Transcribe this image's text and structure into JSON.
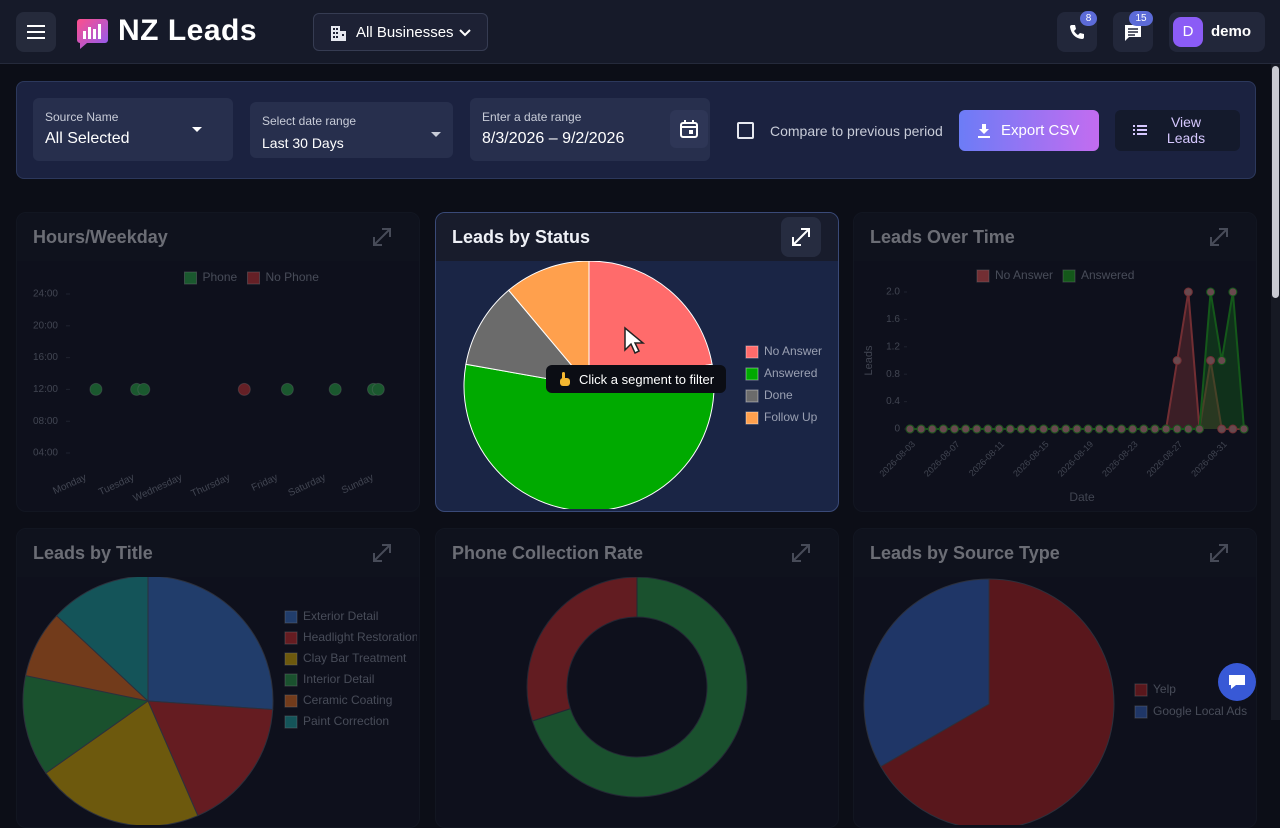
{
  "header": {
    "brand": "NZ Leads",
    "business": "All Businesses",
    "calls_badge": 8,
    "messages_badge": 15,
    "avatar": "D",
    "user": "demo"
  },
  "filters": {
    "source_label": "Source Name",
    "source_value": "All Selected",
    "range_label": "Select date range",
    "range_value": "Last 30 Days",
    "date_label": "Enter a date range",
    "date_value": "8/3/2026 – 9/2/2026",
    "compare": "Compare to previous period",
    "export": "Export CSV",
    "view": "View Leads"
  },
  "cards": [
    {
      "title": "Hours/Weekday",
      "chart_data": {
        "type": "scatter",
        "categories": [
          "Monday",
          "Tuesday",
          "Wednesday",
          "Thursday",
          "Friday",
          "Saturday",
          "Sunday"
        ],
        "xlim": [
          0,
          7
        ],
        "ylim": [
          4,
          24
        ],
        "yticks": [
          {
            "value": 24,
            "label": "24:00"
          },
          {
            "value": 20,
            "label": "20:00"
          },
          {
            "value": 16,
            "label": "16:00"
          },
          {
            "value": 12,
            "label": "12:00"
          },
          {
            "value": 8,
            "label": "08:00"
          },
          {
            "value": 4,
            "label": "04:00"
          }
        ],
        "series": [
          {
            "name": "Phone",
            "color": "#2fbf4f",
            "x": [
              0.5,
              1.35,
              1.5,
              4.5,
              5.5,
              6.3,
              6.4
            ],
            "y": [
              12,
              12,
              12,
              12,
              12,
              12,
              12
            ]
          },
          {
            "name": "No Phone",
            "color": "#e03b3b",
            "x": [
              3.6
            ],
            "y": [
              12
            ]
          }
        ]
      }
    },
    {
      "title": "Leads by Status",
      "tooltip": "Click a segment to filter",
      "chart_data": {
        "type": "pie",
        "labels": [
          "No Answer",
          "Answered",
          "Done",
          "Follow Up"
        ],
        "values": [
          4,
          10,
          2,
          2
        ],
        "colors": [
          "#ff6b6b",
          "#00aa00",
          "#6b6b6b",
          "#ffa04d"
        ]
      }
    },
    {
      "title": "Leads Over Time",
      "chart_data": {
        "type": "line",
        "categories": [
          "2026-08-03",
          null,
          null,
          null,
          "2026-08-07",
          null,
          null,
          null,
          "2026-08-11",
          null,
          null,
          null,
          "2026-08-15",
          null,
          null,
          null,
          "2026-08-19",
          null,
          null,
          null,
          "2026-08-23",
          null,
          null,
          null,
          "2026-08-27",
          null,
          null,
          null,
          "2026-08-31",
          null,
          null
        ],
        "ylim": [
          0,
          2
        ],
        "yticks": [
          0,
          {
            "value": 0.4,
            "label": "0.4"
          },
          {
            "value": 0.8,
            "label": "0.8"
          },
          {
            "value": 1.2,
            "label": "1.2"
          },
          {
            "value": 1.6,
            "label": "1.6"
          },
          {
            "value": 2,
            "label": "2.0"
          }
        ],
        "y_label": "Leads",
        "x_label": "Date",
        "series": [
          {
            "name": "No Answer",
            "color": "#ff5a5a",
            "values": [
              0,
              0,
              0,
              0,
              0,
              0,
              0,
              0,
              0,
              0,
              0,
              0,
              0,
              0,
              0,
              0,
              0,
              0,
              0,
              0,
              0,
              0,
              0,
              0,
              1,
              2,
              0,
              1,
              0,
              0,
              0
            ]
          },
          {
            "name": "Answered",
            "color": "#1fbf1f",
            "values": [
              0,
              0,
              0,
              0,
              0,
              0,
              0,
              0,
              0,
              0,
              0,
              0,
              0,
              0,
              0,
              0,
              0,
              0,
              0,
              0,
              0,
              0,
              0,
              0,
              0,
              0,
              0,
              2,
              1,
              2,
              0
            ]
          }
        ]
      }
    },
    {
      "title": "Leads by Title",
      "chart_data": {
        "type": "pie",
        "labels": [
          "Exterior Detail",
          "Headlight Restoration",
          "Clay Bar Treatment",
          "Interior Detail",
          "Ceramic Coating",
          "Paint Correction"
        ],
        "values": [
          6,
          4,
          5,
          3,
          2,
          3
        ],
        "colors": [
          "#3f7fe0",
          "#e03030",
          "#f2c200",
          "#2fae4f",
          "#ff7a22",
          "#1fb5b5"
        ]
      }
    },
    {
      "title": "Phone Collection Rate",
      "chart_data": {
        "type": "doughnut",
        "values": [
          70,
          30
        ],
        "colors": [
          "#2fae4f",
          "#d83030"
        ]
      }
    },
    {
      "title": "Leads by Source Type",
      "chart_data": {
        "type": "pie",
        "labels": [
          "Yelp",
          "Google Local Ads"
        ],
        "values": [
          2,
          1
        ],
        "colors": [
          "#c42424",
          "#3a6fd6"
        ]
      }
    }
  ]
}
